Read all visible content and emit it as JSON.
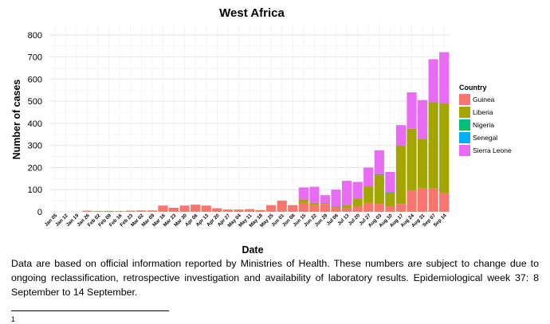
{
  "caption": "Data are based on official information reported by Ministries of Health. These numbers are subject to change due to ongoing reclassification, retrospective investigation and availability of laboratory results. Epidemiological week 37: 8 September to 14 September.",
  "footnote": {
    "marker": "1"
  },
  "chart_data": {
    "type": "bar",
    "stacked": true,
    "title": "West Africa",
    "xlabel": "Date",
    "ylabel": "Number of cases",
    "ylim": [
      0,
      850
    ],
    "yticks": [
      0,
      100,
      200,
      300,
      400,
      500,
      600,
      700,
      800
    ],
    "grid": true,
    "legend": {
      "title": "Country",
      "position": "right"
    },
    "categories": [
      "Jan 05",
      "Jan 12",
      "Jan 19",
      "Jan 26",
      "Feb 02",
      "Feb 09",
      "Feb 16",
      "Feb 23",
      "Mar 02",
      "Mar 09",
      "Mar 16",
      "Mar 23",
      "Mar 30",
      "Apr 06",
      "Apr 13",
      "Apr 20",
      "Apr 27",
      "May 04",
      "May 11",
      "May 18",
      "May 25",
      "Jun 01",
      "Jun 08",
      "Jun 15",
      "Jun 22",
      "Jun 29",
      "Jul 06",
      "Jul 13",
      "Jul 20",
      "Jul 27",
      "Aug 03",
      "Aug 10",
      "Aug 17",
      "Aug 24",
      "Aug 31",
      "Sep 07",
      "Sep 14"
    ],
    "series": [
      {
        "name": "Guinea",
        "color": "#F8766D",
        "values": [
          0,
          0,
          0,
          5,
          3,
          4,
          3,
          5,
          6,
          6,
          28,
          18,
          28,
          32,
          28,
          16,
          10,
          10,
          12,
          8,
          30,
          50,
          30,
          40,
          30,
          35,
          20,
          15,
          25,
          40,
          35,
          25,
          35,
          95,
          105,
          105,
          85
        ]
      },
      {
        "name": "Liberia",
        "color": "#A3A500",
        "values": [
          0,
          0,
          0,
          0,
          0,
          0,
          0,
          0,
          0,
          0,
          0,
          0,
          0,
          0,
          0,
          0,
          0,
          0,
          0,
          0,
          0,
          0,
          0,
          15,
          10,
          5,
          5,
          15,
          35,
          75,
          130,
          60,
          265,
          280,
          225,
          390,
          405
        ]
      },
      {
        "name": "Nigeria",
        "color": "#00BF7D",
        "values": [
          0,
          0,
          0,
          0,
          0,
          0,
          0,
          0,
          0,
          0,
          0,
          0,
          0,
          0,
          0,
          0,
          0,
          0,
          0,
          0,
          0,
          0,
          0,
          0,
          0,
          0,
          0,
          0,
          0,
          0,
          5,
          3,
          0,
          0,
          0,
          0,
          0
        ]
      },
      {
        "name": "Senegal",
        "color": "#00B0F6",
        "values": [
          0,
          0,
          0,
          0,
          0,
          0,
          0,
          0,
          0,
          0,
          0,
          0,
          0,
          0,
          0,
          0,
          0,
          0,
          0,
          0,
          0,
          0,
          0,
          0,
          0,
          0,
          0,
          0,
          0,
          0,
          0,
          0,
          0,
          0,
          0,
          0,
          0
        ]
      },
      {
        "name": "Sierra Leone",
        "color": "#E76BF3",
        "values": [
          0,
          0,
          0,
          0,
          0,
          0,
          0,
          0,
          0,
          0,
          0,
          0,
          0,
          0,
          0,
          0,
          0,
          0,
          0,
          0,
          0,
          0,
          0,
          55,
          73,
          35,
          75,
          110,
          75,
          85,
          108,
          92,
          92,
          165,
          175,
          195,
          232
        ]
      }
    ]
  }
}
